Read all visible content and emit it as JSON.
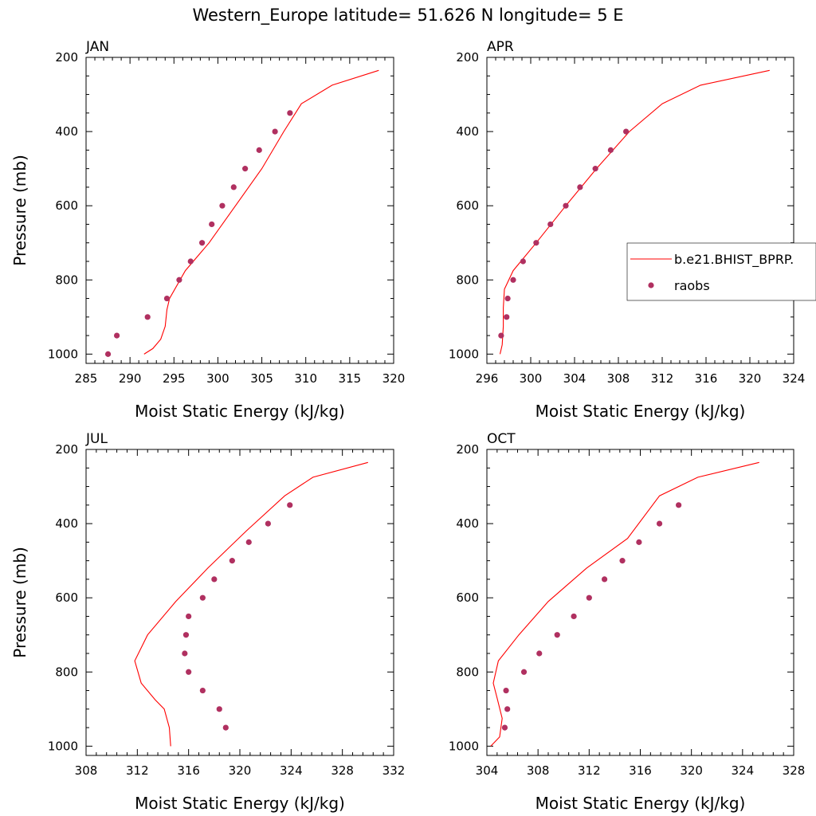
{
  "figure_title": "Western_Europe  latitude= 51.626 N longitude= 5 E",
  "colors": {
    "model": "#ff0000",
    "obs": "#b03060"
  },
  "chart_data": [
    {
      "type": "line",
      "panel": "JAN",
      "title": "JAN",
      "xlabel": "Moist Static Energy (kJ/kg)",
      "ylabel": "Pressure (mb)",
      "xlim": [
        285,
        320
      ],
      "ylim": [
        200,
        1025
      ],
      "y_reversed": true,
      "xticks": [
        285,
        290,
        295,
        300,
        305,
        310,
        315,
        320
      ],
      "yticks": [
        200,
        400,
        600,
        800,
        1000
      ],
      "series": [
        {
          "name": "b.e21.BHIST_BPRP.",
          "kind": "line",
          "x": [
            291.6,
            292.6,
            293.5,
            294.0,
            294.2,
            294.5,
            296.3,
            299.0,
            302.0,
            305.0,
            307.5,
            309.5,
            313.0,
            318.3
          ],
          "y": [
            1000,
            985,
            960,
            925,
            880,
            850,
            775,
            700,
            600,
            500,
            400,
            325,
            275,
            235
          ]
        },
        {
          "name": "raobs",
          "kind": "points",
          "x": [
            287.5,
            288.5,
            292.0,
            294.2,
            295.6,
            296.9,
            298.2,
            299.3,
            300.5,
            301.8,
            303.1,
            304.7,
            306.5,
            308.2
          ],
          "y": [
            1000,
            950,
            900,
            850,
            800,
            750,
            700,
            650,
            600,
            550,
            500,
            450,
            400,
            350
          ]
        }
      ]
    },
    {
      "type": "line",
      "panel": "APR",
      "title": "APR",
      "xlabel": "Moist Static Energy (kJ/kg)",
      "ylabel": "",
      "xlim": [
        296,
        324
      ],
      "ylim": [
        200,
        1025
      ],
      "y_reversed": true,
      "xticks": [
        296,
        300,
        304,
        308,
        312,
        316,
        320,
        324
      ],
      "yticks": [
        200,
        400,
        600,
        800,
        1000
      ],
      "series": [
        {
          "name": "b.e21.BHIST_BPRP.",
          "kind": "line",
          "x": [
            297.2,
            297.4,
            297.5,
            297.5,
            297.6,
            298.4,
            300.5,
            303.2,
            306.0,
            309.0,
            312.0,
            315.5,
            321.8
          ],
          "y": [
            1000,
            975,
            925,
            875,
            825,
            775,
            700,
            600,
            500,
            400,
            325,
            275,
            235
          ]
        },
        {
          "name": "raobs",
          "kind": "points",
          "x": [
            297.3,
            297.8,
            297.9,
            298.4,
            299.3,
            300.5,
            301.8,
            303.2,
            304.5,
            305.9,
            307.3,
            308.7
          ],
          "y": [
            950,
            900,
            850,
            800,
            750,
            700,
            650,
            600,
            550,
            500,
            450,
            400
          ]
        }
      ]
    },
    {
      "type": "line",
      "panel": "JUL",
      "title": "JUL",
      "xlabel": "Moist Static Energy (kJ/kg)",
      "ylabel": "Pressure (mb)",
      "xlim": [
        308,
        332
      ],
      "ylim": [
        200,
        1025
      ],
      "y_reversed": true,
      "xticks": [
        308,
        312,
        316,
        320,
        324,
        328,
        332
      ],
      "yticks": [
        200,
        400,
        600,
        800,
        1000
      ],
      "series": [
        {
          "name": "b.e21.BHIST_BPRP.",
          "kind": "line",
          "x": [
            314.6,
            314.5,
            314.1,
            313.4,
            312.3,
            311.8,
            312.8,
            315.0,
            317.5,
            320.5,
            323.5,
            325.7,
            330.0
          ],
          "y": [
            1000,
            950,
            900,
            875,
            830,
            770,
            700,
            610,
            520,
            420,
            325,
            275,
            235
          ]
        },
        {
          "name": "raobs",
          "kind": "points",
          "x": [
            318.9,
            318.4,
            317.1,
            316.0,
            315.7,
            315.8,
            316.0,
            317.1,
            318.0,
            319.4,
            320.7,
            322.2,
            323.9
          ],
          "y": [
            950,
            900,
            850,
            800,
            750,
            700,
            650,
            600,
            550,
            500,
            450,
            400,
            350
          ]
        }
      ]
    },
    {
      "type": "line",
      "panel": "OCT",
      "title": "OCT",
      "xlabel": "Moist Static Energy (kJ/kg)",
      "ylabel": "",
      "xlim": [
        304,
        328
      ],
      "ylim": [
        200,
        1025
      ],
      "y_reversed": true,
      "xticks": [
        304,
        308,
        312,
        316,
        320,
        324,
        328
      ],
      "yticks": [
        200,
        400,
        600,
        800,
        1000
      ],
      "series": [
        {
          "name": "b.e21.BHIST_BPRP.",
          "kind": "line",
          "x": [
            304.3,
            305.0,
            305.2,
            304.8,
            304.5,
            304.9,
            306.5,
            308.8,
            311.8,
            315.0,
            317.5,
            320.5,
            325.3
          ],
          "y": [
            1000,
            975,
            925,
            870,
            830,
            770,
            700,
            610,
            520,
            440,
            325,
            275,
            235
          ]
        },
        {
          "name": "raobs",
          "kind": "points",
          "x": [
            305.4,
            305.6,
            305.5,
            306.9,
            308.1,
            309.5,
            310.8,
            312.0,
            313.2,
            314.6,
            315.9,
            317.5,
            319.0
          ],
          "y": [
            950,
            900,
            850,
            800,
            750,
            700,
            650,
            600,
            550,
            500,
            450,
            400,
            350
          ]
        }
      ]
    }
  ],
  "legend": {
    "location": "right of APR panel",
    "entries": [
      {
        "label": "b.e21.BHIST_BPRP.",
        "marker": "line"
      },
      {
        "label": "raobs",
        "marker": "dot"
      }
    ]
  }
}
